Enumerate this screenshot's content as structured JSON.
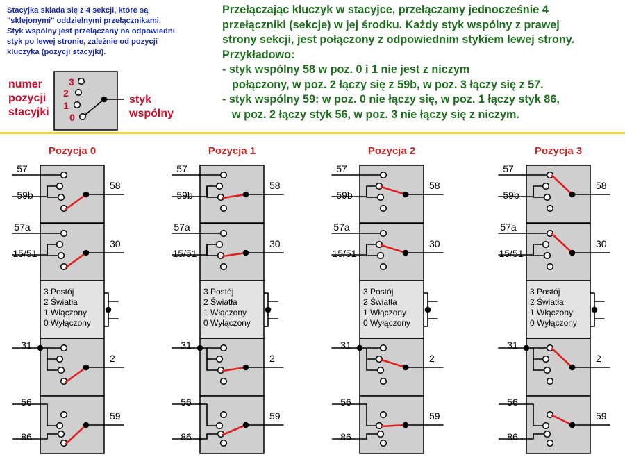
{
  "intro": {
    "lines": [
      "Stacyjka składa się z 4 sekcji, które są",
      "\"sklejonymi\" oddzielnymi przełącznikami.",
      "Styk wspólny jest przełączany na odpowiedni",
      "styk po lewej stronie, zależnie od pozycji",
      "kluczyka (pozycji stacyjki)."
    ]
  },
  "legend": {
    "position_label_lines": [
      "numer",
      "pozycji",
      "stacyjki"
    ],
    "common_label_lines": [
      "styk",
      "wspólny"
    ],
    "numbers": [
      "3",
      "2",
      "1",
      "0"
    ]
  },
  "description": {
    "lines": [
      "Przełączając kluczyk w stacyjce, przełączamy jednocześnie 4",
      "przełączniki (sekcje) w jej środku. Każdy styk wspólny z prawej",
      "strony sekcji, jest połączony z odpowiednim stykiem lewej strony.",
      "Przykładowo:",
      "- styk wspólny 58 w poz. 0 i 1 nie jest z niczym",
      "połączony, w poz. 2 łączy się z 59b, w poz. 3 łączy się z 57.",
      "- styk wspólny 59: w poz. 0 nie łączy się, w poz. 1 łączy styk 86,",
      "w poz. 2 łączy styk 56, w poz. 3 nie łączy się z niczym."
    ]
  },
  "sections": [
    {
      "left": [
        "57",
        "59b"
      ],
      "right": "58"
    },
    {
      "left": [
        "57a",
        "15/51"
      ],
      "right": "30"
    },
    {
      "left": [
        "31"
      ],
      "right": "2"
    },
    {
      "left": [
        "56",
        "86"
      ],
      "right": "59"
    }
  ],
  "legend_box": {
    "lines": [
      "3  Postój",
      "2  Światła",
      "1  Włączony",
      "0  Wyłączony"
    ]
  },
  "positions": [
    {
      "title": "Pozycja 0",
      "active": 0
    },
    {
      "title": "Pozycja 1",
      "active": 1
    },
    {
      "title": "Pozycja 2",
      "active": 2
    },
    {
      "title": "Pozycja 3",
      "active": 3
    }
  ],
  "colors": {
    "intro_text": "#1a2aa8",
    "main_text": "#1f6e1f",
    "label_red": "#c8102e",
    "title_red": "#c62828",
    "wiper_red": "#e02020",
    "box_fill": "#cfcfcf",
    "separator": "#f2d43a"
  }
}
